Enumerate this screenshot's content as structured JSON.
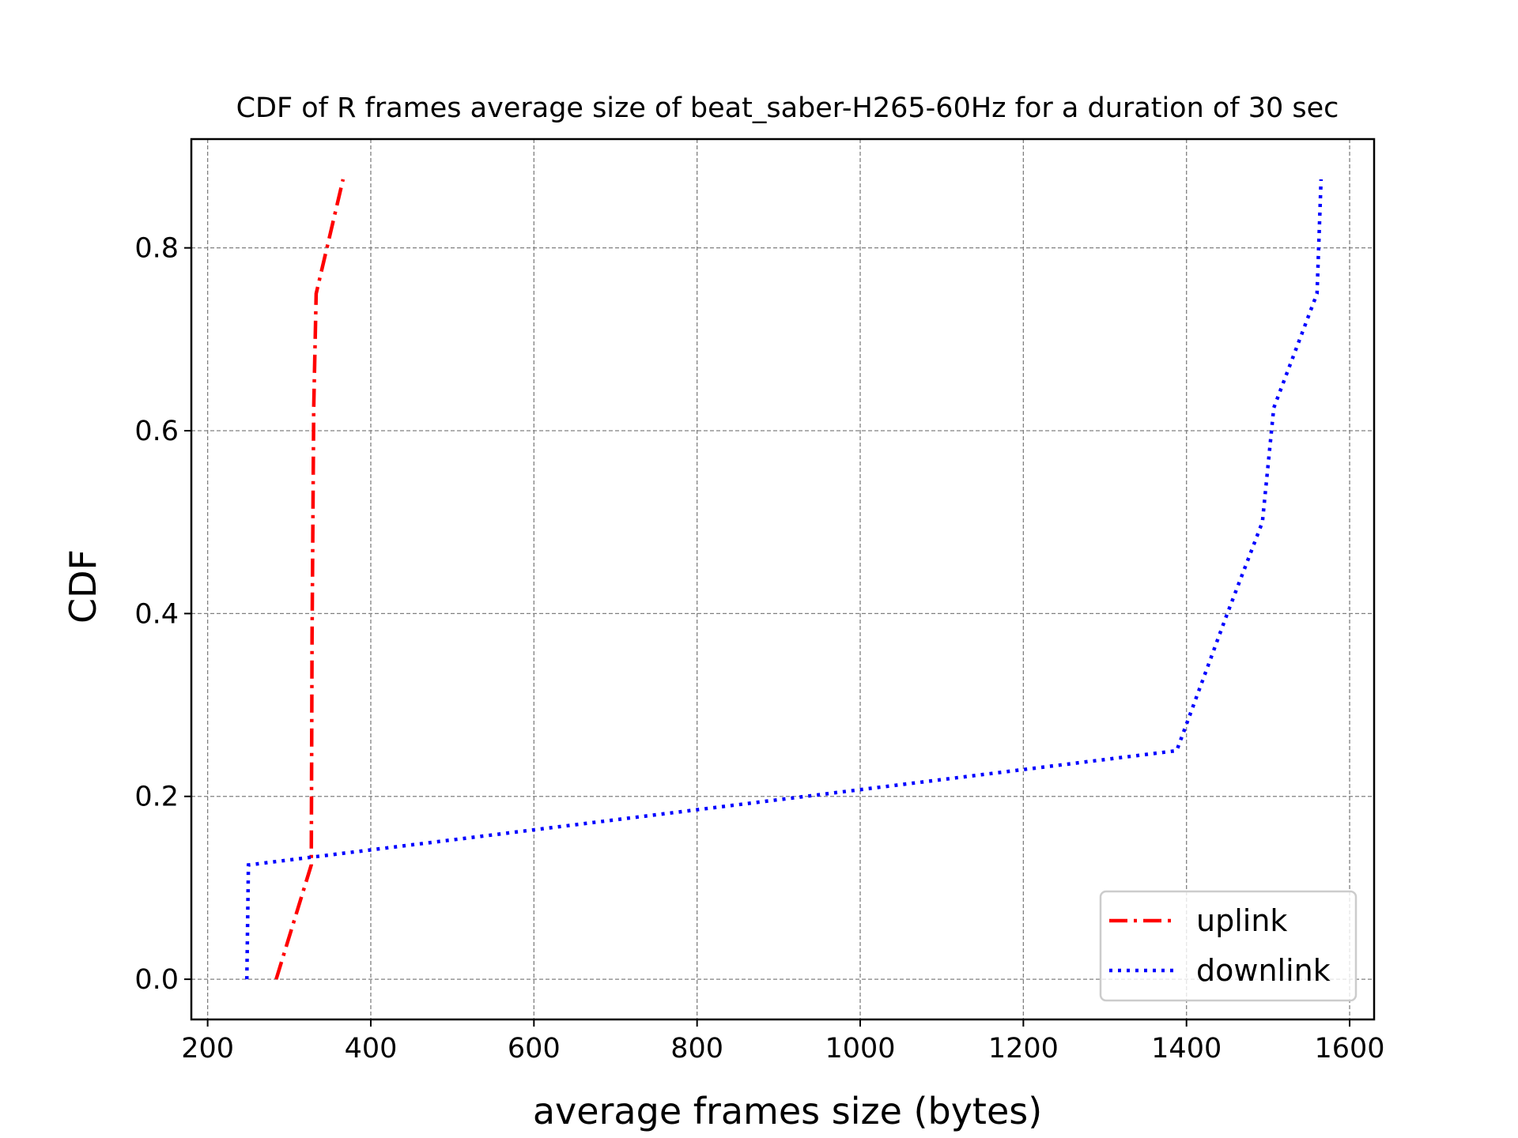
{
  "chart_data": {
    "type": "line",
    "title": "CDF of R frames average size of beat_saber-H265-60Hz for a duration of 30 sec",
    "xlabel": "average frames size (bytes)",
    "ylabel": "CDF",
    "xlim": [
      180,
      1630
    ],
    "ylim": [
      -0.044,
      0.919
    ],
    "xticks": [
      200,
      400,
      600,
      800,
      1000,
      1200,
      1400,
      1600
    ],
    "xtick_labels": [
      "200",
      "400",
      "600",
      "800",
      "1000",
      "1200",
      "1400",
      "1600"
    ],
    "yticks": [
      0.0,
      0.2,
      0.4,
      0.6,
      0.8
    ],
    "ytick_labels": [
      "0.0",
      "0.2",
      "0.4",
      "0.6",
      "0.8"
    ],
    "grid": true,
    "legend_position": "lower-right",
    "series": [
      {
        "name": "uplink",
        "color": "#ff0000",
        "style": "dashdot",
        "x": [
          284,
          327,
          328,
          330,
          333,
          366
        ],
        "y": [
          0.0,
          0.125,
          0.375,
          0.625,
          0.75,
          0.875
        ]
      },
      {
        "name": "downlink",
        "color": "#0000ff",
        "style": "dotted",
        "x": [
          248,
          250,
          1388,
          1450,
          1493,
          1507,
          1560,
          1565
        ],
        "y": [
          0.0,
          0.125,
          0.25,
          0.4,
          0.5,
          0.625,
          0.75,
          0.875
        ]
      }
    ]
  }
}
